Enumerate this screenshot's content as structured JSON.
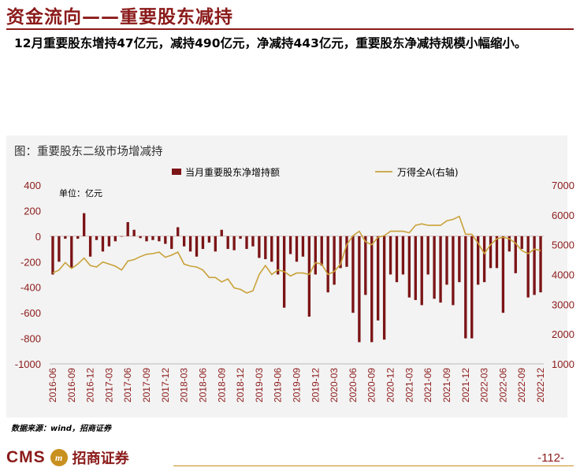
{
  "page": {
    "title": "资金流向——重要股东减持",
    "summary": "12月重要股东增持47亿元，减持490亿元，净减持443亿元，重要股东净减持规模小幅缩小。",
    "chart_caption": "图：重要股东二级市场增减持",
    "source": "数据来源：wind，招商证券",
    "logo_text": "CMS",
    "logo_seal": "m",
    "firm_name": "招商证券",
    "page_number": "-112-"
  },
  "colors": {
    "bar": "#7b1416",
    "line": "#c9a23a",
    "brand": "#8b1a1a",
    "axis_text": "#8b1a1a"
  },
  "chart_data": {
    "type": "bar",
    "unit_label": "单位：亿元",
    "x": [
      "2016-06",
      "2016-07",
      "2016-08",
      "2016-09",
      "2016-10",
      "2016-11",
      "2016-12",
      "2017-01",
      "2017-02",
      "2017-03",
      "2017-04",
      "2017-05",
      "2017-06",
      "2017-07",
      "2017-08",
      "2017-09",
      "2017-10",
      "2017-11",
      "2017-12",
      "2018-01",
      "2018-02",
      "2018-03",
      "2018-04",
      "2018-05",
      "2018-06",
      "2018-07",
      "2018-08",
      "2018-09",
      "2018-10",
      "2018-11",
      "2018-12",
      "2019-01",
      "2019-02",
      "2019-03",
      "2019-04",
      "2019-05",
      "2019-06",
      "2019-07",
      "2019-08",
      "2019-09",
      "2019-10",
      "2019-11",
      "2019-12",
      "2020-01",
      "2020-02",
      "2020-03",
      "2020-04",
      "2020-05",
      "2020-06",
      "2020-07",
      "2020-08",
      "2020-09",
      "2020-10",
      "2020-11",
      "2020-12",
      "2021-01",
      "2021-02",
      "2021-03",
      "2021-04",
      "2021-05",
      "2021-06",
      "2021-07",
      "2021-08",
      "2021-09",
      "2021-10",
      "2021-11",
      "2021-12",
      "2022-01",
      "2022-02",
      "2022-03",
      "2022-04",
      "2022-05",
      "2022-06",
      "2022-07",
      "2022-08",
      "2022-09",
      "2022-10",
      "2022-11",
      "2022-12"
    ],
    "x_tick_labels": [
      "2016-06",
      "2016-09",
      "2016-12",
      "2017-03",
      "2017-06",
      "2017-09",
      "2017-12",
      "2018-03",
      "2018-06",
      "2018-09",
      "2018-12",
      "2019-03",
      "2019-06",
      "2019-09",
      "2019-12",
      "2020-03",
      "2020-06",
      "2020-09",
      "2020-12",
      "2021-03",
      "2021-06",
      "2021-09",
      "2021-12",
      "2022-03",
      "2022-06",
      "2022-09",
      "2022-12"
    ],
    "series": [
      {
        "name": "当月重要股东净增持额",
        "type": "bar",
        "axis": "left",
        "values": [
          -300,
          -200,
          -20,
          -250,
          -20,
          180,
          -160,
          -30,
          -120,
          -80,
          -40,
          0,
          110,
          50,
          -15,
          -40,
          -30,
          -40,
          -60,
          -100,
          70,
          -80,
          -120,
          -160,
          -100,
          -50,
          -120,
          50,
          -100,
          -110,
          -20,
          -100,
          -80,
          -170,
          -180,
          -200,
          -300,
          -560,
          -140,
          -200,
          -160,
          -630,
          -300,
          -230,
          -440,
          -380,
          -250,
          -240,
          -600,
          -830,
          -460,
          -830,
          -660,
          -810,
          -300,
          -360,
          -300,
          -480,
          -500,
          -540,
          -300,
          -490,
          -520,
          -380,
          -540,
          -360,
          -800,
          -800,
          -380,
          -360,
          -250,
          -250,
          -600,
          -120,
          -290,
          -100,
          -480,
          -460,
          -440
        ]
      },
      {
        "name": "万得全A(右轴)",
        "type": "line",
        "axis": "right",
        "values": [
          4050,
          4150,
          4400,
          4200,
          4350,
          4550,
          4300,
          4250,
          4420,
          4350,
          4280,
          4150,
          4450,
          4500,
          4600,
          4680,
          4700,
          4750,
          4580,
          4650,
          4750,
          4350,
          4280,
          4250,
          4150,
          3900,
          3900,
          3750,
          3850,
          3550,
          3500,
          3380,
          3450,
          4000,
          4300,
          4000,
          4150,
          4100,
          3950,
          4050,
          4050,
          4000,
          4400,
          4350,
          4000,
          4100,
          4350,
          5000,
          5300,
          5450,
          5100,
          5000,
          5250,
          5300,
          5450,
          5450,
          5450,
          5400,
          5650,
          5700,
          5650,
          5650,
          5650,
          5800,
          5850,
          5950,
          5350,
          5350,
          5050,
          4700,
          5000,
          5200,
          5250,
          5200,
          5050,
          4800,
          4700,
          4850,
          4800
        ]
      }
    ],
    "left_axis": {
      "min": -1000,
      "max": 400,
      "ticks": [
        400,
        200,
        0,
        -200,
        -400,
        -600,
        -800,
        -1000
      ]
    },
    "right_axis": {
      "min": 1000,
      "max": 7000,
      "ticks": [
        7000,
        6000,
        5000,
        4000,
        3000,
        2000,
        1000
      ]
    },
    "legend_position": "top",
    "grid": false
  }
}
